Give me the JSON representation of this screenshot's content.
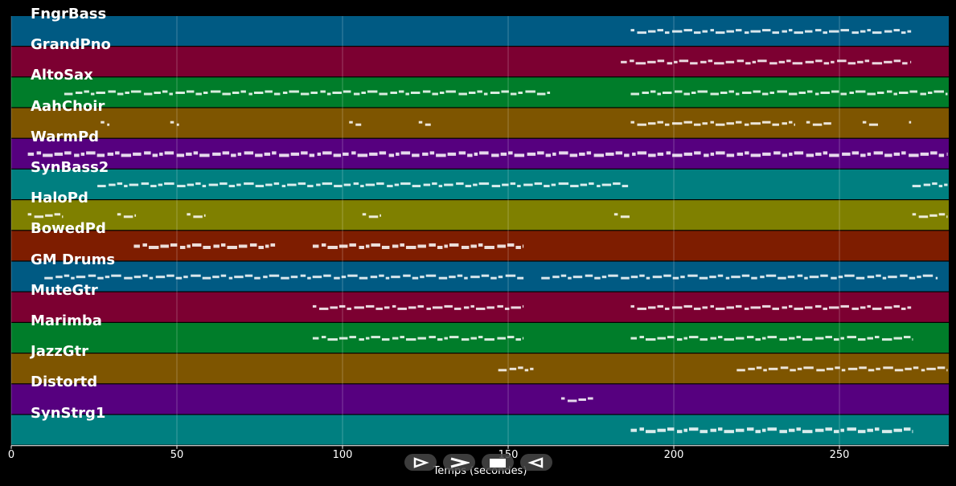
{
  "chart_data": {
    "type": "piano-roll",
    "title": "",
    "xlabel": "Temps (secondes)",
    "ylabel": "",
    "xlim": [
      0,
      283
    ],
    "x_ticks": [
      0,
      50,
      100,
      150,
      200,
      250
    ],
    "grid": true,
    "tracks": [
      {
        "name": "FngrBass",
        "color": "#005a83",
        "segments": [
          [
            187,
            272
          ]
        ]
      },
      {
        "name": "GrandPno",
        "color": "#7c0031",
        "segments": [
          [
            184,
            272
          ]
        ]
      },
      {
        "name": "AltoSax",
        "color": "#007d2a",
        "segments": [
          [
            16,
            163
          ],
          [
            187,
            283
          ]
        ]
      },
      {
        "name": "AahChoir",
        "color": "#7e5500",
        "segments": [
          [
            27,
            30
          ],
          [
            48,
            51
          ],
          [
            102,
            106
          ],
          [
            123,
            127
          ],
          [
            187,
            237
          ],
          [
            240,
            248
          ],
          [
            257,
            262
          ],
          [
            271,
            272
          ]
        ]
      },
      {
        "name": "WarmPd",
        "color": "#56007f",
        "segments": [
          [
            5,
            283
          ]
        ]
      },
      {
        "name": "SynBass2",
        "color": "#007f80",
        "segments": [
          [
            26,
            187
          ],
          [
            272,
            283
          ]
        ]
      },
      {
        "name": "HaloPd",
        "color": "#7f8000",
        "segments": [
          [
            5,
            16
          ],
          [
            32,
            38
          ],
          [
            53,
            59
          ],
          [
            106,
            112
          ],
          [
            182,
            187
          ],
          [
            272,
            283
          ]
        ]
      },
      {
        "name": "BowedPd",
        "color": "#7e1d00",
        "segments": [
          [
            37,
            80
          ],
          [
            91,
            155
          ]
        ]
      },
      {
        "name": "GM Drums",
        "color": "#005a83",
        "segments": [
          [
            10,
            155
          ],
          [
            160,
            280
          ]
        ]
      },
      {
        "name": "MuteGtr",
        "color": "#7c0031",
        "segments": [
          [
            91,
            155
          ],
          [
            187,
            272
          ]
        ]
      },
      {
        "name": "Marimba",
        "color": "#007d2a",
        "segments": [
          [
            91,
            155
          ],
          [
            187,
            272
          ]
        ]
      },
      {
        "name": "JazzGtr",
        "color": "#7e5500",
        "segments": [
          [
            147,
            158
          ],
          [
            219,
            283
          ]
        ]
      },
      {
        "name": "Distortd",
        "color": "#56007f",
        "segments": [
          [
            166,
            176
          ]
        ]
      },
      {
        "name": "SynStrg1",
        "color": "#007f80",
        "segments": [
          [
            187,
            272
          ]
        ]
      }
    ]
  },
  "controls": {
    "play_label": "play",
    "forward_label": "forward",
    "stop_label": "stop",
    "rewind_label": "rewind"
  }
}
